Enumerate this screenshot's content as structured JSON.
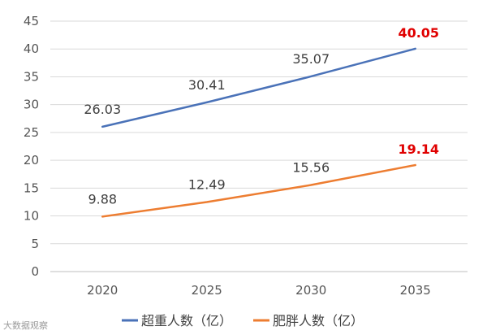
{
  "chart_data": {
    "type": "line",
    "categories": [
      "2020",
      "2025",
      "2030",
      "2035"
    ],
    "ylim": [
      0,
      45
    ],
    "yticks": [
      0,
      5,
      10,
      15,
      20,
      25,
      30,
      35,
      40,
      45
    ],
    "grid": true,
    "legend_position": "bottom",
    "series": [
      {
        "name": "超重人数（亿）",
        "values": [
          26.03,
          30.41,
          35.07,
          40.05
        ],
        "labels": [
          "26.03",
          "30.41",
          "35.07",
          "40.05"
        ],
        "color": "#4a72b8"
      },
      {
        "name": "肥胖人数（亿）",
        "values": [
          9.88,
          12.49,
          15.56,
          19.14
        ],
        "labels": [
          "9.88",
          "12.49",
          "15.56",
          "19.14"
        ],
        "color": "#ed7d31"
      }
    ],
    "highlight_color": "#e00000"
  },
  "watermark": "大数据观察"
}
